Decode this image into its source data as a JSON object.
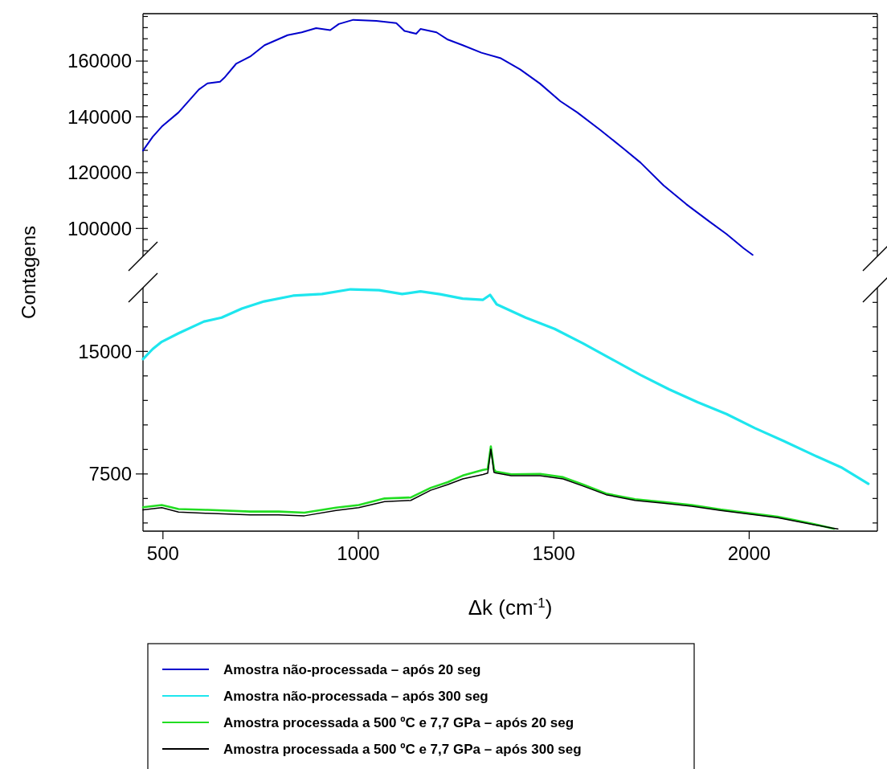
{
  "chart_data": [
    {
      "type": "line",
      "ylabel": "Contagens",
      "tick_labels": "y",
      "xlim": [
        449,
        2328
      ],
      "ylim": [
        90000,
        177000
      ],
      "yticks": [
        {
          "value": 92000,
          "label": null
        },
        {
          "value": 96000,
          "label": null
        },
        100000,
        {
          "value": 104000,
          "label": null
        },
        {
          "value": 108000,
          "label": null
        },
        {
          "value": 112000,
          "label": null
        },
        {
          "value": 116000,
          "label": null
        },
        120000,
        {
          "value": 124000,
          "label": null
        },
        {
          "value": 128000,
          "label": null
        },
        {
          "value": 132000,
          "label": null
        },
        {
          "value": 136000,
          "label": null
        },
        140000,
        {
          "value": 144000,
          "label": null
        },
        {
          "value": 148000,
          "label": null
        },
        {
          "value": 152000,
          "label": null
        },
        {
          "value": 156000,
          "label": null
        },
        160000,
        {
          "value": 164000,
          "label": null
        },
        {
          "value": 168000,
          "label": null
        },
        {
          "value": 172000,
          "label": null
        },
        {
          "value": 176000,
          "label": null
        }
      ],
      "series": [
        {
          "name": "Amostra não-processada – após 20 seg",
          "color": "#0000cc",
          "x": [
            449,
            474,
            497,
            540,
            592,
            614,
            646,
            657,
            687,
            723,
            760,
            819,
            855,
            892,
            928,
            950,
            987,
            1046,
            1097,
            1118,
            1148,
            1159,
            1200,
            1229,
            1267,
            1315,
            1363,
            1414,
            1465,
            1517,
            1560,
            1619,
            1678,
            1722,
            1781,
            1839,
            1898,
            1942,
            1986,
            2009
          ],
          "values": [
            127900,
            132900,
            136500,
            141600,
            149800,
            152000,
            152600,
            154000,
            159000,
            161600,
            165700,
            169300,
            170300,
            171800,
            171100,
            173300,
            174800,
            174400,
            173600,
            170800,
            169800,
            171500,
            170300,
            167700,
            165700,
            163000,
            161100,
            157000,
            151900,
            145600,
            141600,
            135300,
            128700,
            123600,
            115400,
            108700,
            102500,
            98000,
            92900,
            90500
          ]
        }
      ]
    },
    {
      "type": "line",
      "xlabel": "Δk (cm$^{-1}$)",
      "legend": "bottom",
      "xlim": [
        449,
        2328
      ],
      "ylim": [
        4000,
        18900
      ],
      "xticks": [
        500,
        1000,
        1500,
        2000
      ],
      "yticks": [
        {
          "value": 4500,
          "label": null
        },
        {
          "value": 6000,
          "label": null
        },
        7500,
        {
          "value": 9000,
          "label": null
        },
        {
          "value": 10500,
          "label": null
        },
        {
          "value": 12000,
          "label": null
        },
        {
          "value": 13500,
          "label": null
        },
        15000,
        {
          "value": 16500,
          "label": null
        },
        {
          "value": 18000,
          "label": null
        }
      ],
      "series": [
        {
          "name": "Amostra não-processada – após 300 seg",
          "color": "#1ee6ee",
          "x": [
            449,
            474,
            497,
            540,
            605,
            650,
            702,
            759,
            833,
            907,
            980,
            1053,
            1112,
            1159,
            1209,
            1267,
            1319,
            1337,
            1354,
            1428,
            1502,
            1575,
            1648,
            1722,
            1795,
            1868,
            1942,
            2015,
            2088,
            2161,
            2235,
            2305
          ],
          "values": [
            14530,
            15150,
            15590,
            16110,
            16830,
            17070,
            17620,
            18060,
            18410,
            18510,
            18800,
            18750,
            18510,
            18670,
            18500,
            18230,
            18160,
            18460,
            17880,
            17070,
            16380,
            15490,
            14530,
            13560,
            12680,
            11890,
            11170,
            10300,
            9520,
            8700,
            7910,
            6900
          ]
        },
        {
          "name": "Amostra processada a 500 ºC e 7,7 GPa – após 20 seg",
          "color": "#22dd22",
          "x": [
            449,
            497,
            540,
            614,
            723,
            796,
            862,
            943,
            1001,
            1067,
            1134,
            1185,
            1229,
            1267,
            1319,
            1331,
            1339,
            1347,
            1351,
            1391,
            1465,
            1524,
            1575,
            1634,
            1708,
            1781,
            1853,
            1927,
            2000,
            2073,
            2147,
            2217
          ],
          "values": [
            5460,
            5600,
            5350,
            5300,
            5200,
            5200,
            5130,
            5440,
            5600,
            6000,
            6060,
            6650,
            7000,
            7400,
            7750,
            7800,
            9190,
            7800,
            7650,
            7480,
            7500,
            7300,
            6850,
            6300,
            5950,
            5780,
            5600,
            5320,
            5100,
            4880,
            4530,
            4150
          ]
        },
        {
          "name": "Amostra processada a 500 ºC e 7,7 GPa – após 300 seg",
          "color": "#000000",
          "x": [
            449,
            497,
            540,
            614,
            723,
            796,
            862,
            943,
            1001,
            1067,
            1134,
            1185,
            1229,
            1267,
            1319,
            1331,
            1339,
            1347,
            1351,
            1391,
            1465,
            1524,
            1575,
            1634,
            1708,
            1781,
            1853,
            1927,
            2000,
            2073,
            2147,
            2213,
            2227
          ],
          "values": [
            5300,
            5440,
            5170,
            5090,
            5000,
            5000,
            4940,
            5270,
            5440,
            5810,
            5880,
            6500,
            6850,
            7200,
            7470,
            7550,
            9020,
            7600,
            7560,
            7390,
            7390,
            7200,
            6760,
            6230,
            5880,
            5710,
            5520,
            5270,
            5050,
            4820,
            4480,
            4180,
            4130
          ]
        }
      ]
    }
  ]
}
